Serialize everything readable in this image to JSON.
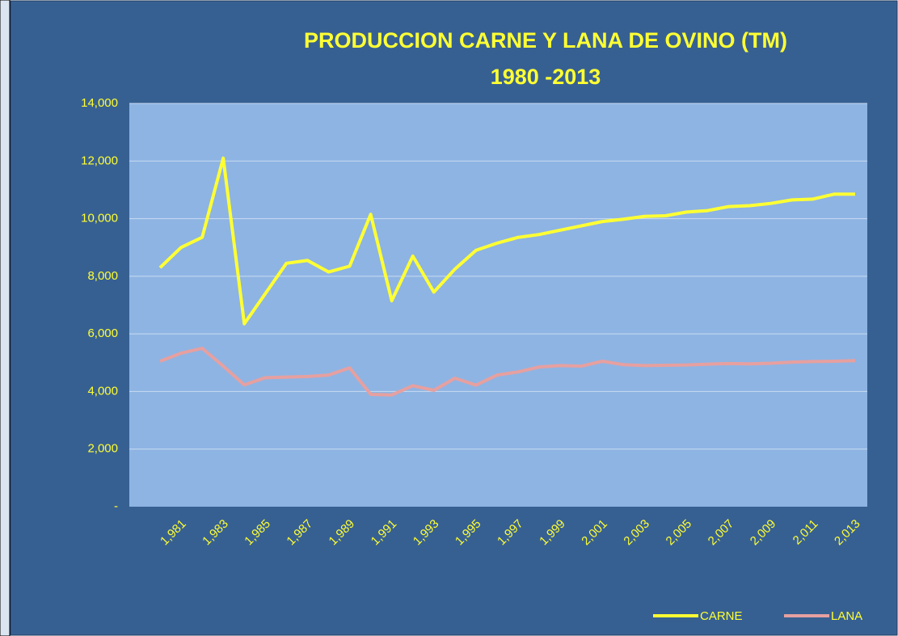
{
  "chart_data": {
    "type": "line",
    "title": "PRODUCCION  CARNE Y LANA DE OVINO (TM)",
    "subtitle": "1980 -2013",
    "categories": [
      null,
      "1,981",
      null,
      "1,983",
      null,
      "1,985",
      null,
      "1,987",
      null,
      "1,989",
      null,
      "1,991",
      null,
      "1,993",
      null,
      "1,995",
      null,
      "1,997",
      null,
      "1,999",
      null,
      "2,001",
      null,
      "2,003",
      null,
      "2,005",
      null,
      "2,007",
      null,
      "2,009",
      null,
      "2,011",
      null,
      "2,013"
    ],
    "series": [
      {
        "name": "CARNE",
        "color": "#ffff33",
        "values": [
          8300,
          9000,
          9350,
          12100,
          6350,
          7400,
          8450,
          8550,
          8150,
          8350,
          10150,
          7150,
          8700,
          7450,
          8250,
          8900,
          9150,
          9350,
          9450,
          9600,
          9750,
          9900,
          9980,
          10080,
          10100,
          10230,
          10280,
          10420,
          10450,
          10530,
          10650,
          10680,
          10850,
          10850
        ]
      },
      {
        "name": "LANA",
        "color": "#e6a0a0",
        "values": [
          5050,
          5330,
          5500,
          4880,
          4230,
          4480,
          4500,
          4520,
          4570,
          4820,
          3900,
          3880,
          4200,
          4040,
          4460,
          4220,
          4570,
          4680,
          4850,
          4900,
          4880,
          5050,
          4930,
          4900,
          4910,
          4920,
          4950,
          4970,
          4960,
          4980,
          5020,
          5040,
          5050,
          5070
        ]
      }
    ],
    "ylim": [
      0,
      14000
    ],
    "yticks": [
      {
        "value": 0,
        "label": "-"
      },
      {
        "value": 2000,
        "label": "2,000"
      },
      {
        "value": 4000,
        "label": "4,000"
      },
      {
        "value": 6000,
        "label": "6,000"
      },
      {
        "value": 8000,
        "label": "8,000"
      },
      {
        "value": 10000,
        "label": "10,000"
      },
      {
        "value": 12000,
        "label": "12,000"
      },
      {
        "value": 14000,
        "label": "14,000"
      }
    ],
    "grid": true,
    "legend": "bottom-right"
  }
}
